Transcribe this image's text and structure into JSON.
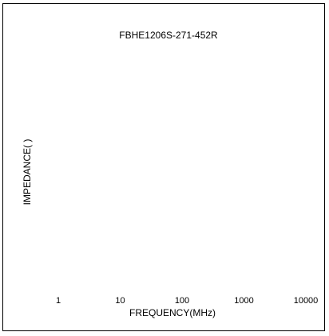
{
  "chart_data": {
    "type": "line",
    "title": "FBHE1206S-271-452R",
    "xlabel": "FREQUENCY(MHz)",
    "ylabel": "IMPEDANCE(  )",
    "x_scale": "log",
    "xlim": [
      1,
      10000
    ],
    "x_ticks": [
      "1",
      "10",
      "100",
      "1000",
      "10000"
    ],
    "grid": false,
    "series": []
  }
}
